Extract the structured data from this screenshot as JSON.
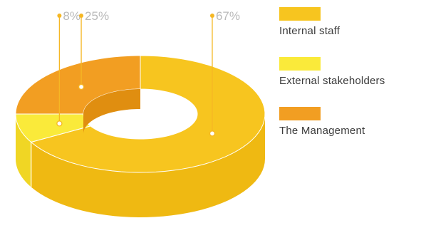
{
  "chart_data": {
    "type": "pie",
    "variant": "3d-donut",
    "title": "",
    "legend_position": "right",
    "series": [
      {
        "name": "Internal staff",
        "value": 67,
        "label": "67%",
        "color": "#f7c51f",
        "side_color": "#efb912"
      },
      {
        "name": "External stakeholders",
        "value": 8,
        "label": "8%",
        "color": "#faea3a",
        "side_color": "#f0d624"
      },
      {
        "name": "The Management",
        "value": 25,
        "label": "25%",
        "color": "#f29e22",
        "side_color": "#e08e10"
      }
    ]
  },
  "colors": {
    "leader_line": "#f5b724",
    "percent_text": "#b9b9b9",
    "legend_text": "#3b3b3b"
  }
}
